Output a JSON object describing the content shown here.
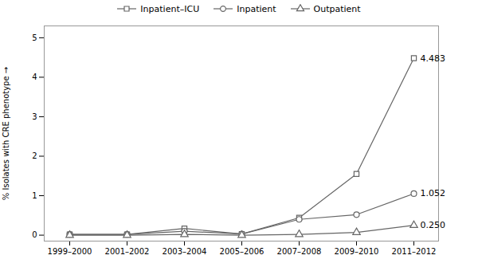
{
  "chart_data": {
    "type": "line",
    "categories": [
      "1999–2000",
      "2001–2002",
      "2003–2004",
      "2005–2006",
      "2007–2008",
      "2009–2010",
      "2011–2012"
    ],
    "series": [
      {
        "name": "Inpatient–ICU",
        "color": "#666666",
        "marker": "square",
        "values": [
          0.02,
          0.02,
          0.17,
          0.03,
          0.44,
          1.55,
          4.483
        ]
      },
      {
        "name": "Inpatient",
        "color": "#666666",
        "marker": "circle",
        "values": [
          0.02,
          0.02,
          0.1,
          0.03,
          0.4,
          0.52,
          1.052
        ]
      },
      {
        "name": "Outpatient",
        "color": "#666666",
        "marker": "triangle",
        "values": [
          0.0,
          0.0,
          0.02,
          0.0,
          0.02,
          0.07,
          0.25
        ]
      }
    ],
    "annotations": [
      {
        "text": "4.483",
        "x": "2011–2012",
        "y": 4.483
      },
      {
        "text": "1.052",
        "x": "2011–2012",
        "y": 1.052
      },
      {
        "text": "0.250",
        "x": "2011–2012",
        "y": 0.25
      }
    ],
    "ylabel": "% Isolates with CRE phenotype",
    "ylim": [
      -0.15,
      5.3
    ],
    "yticks": [
      0,
      1,
      2,
      3,
      4,
      5
    ],
    "legend": "upper center"
  }
}
